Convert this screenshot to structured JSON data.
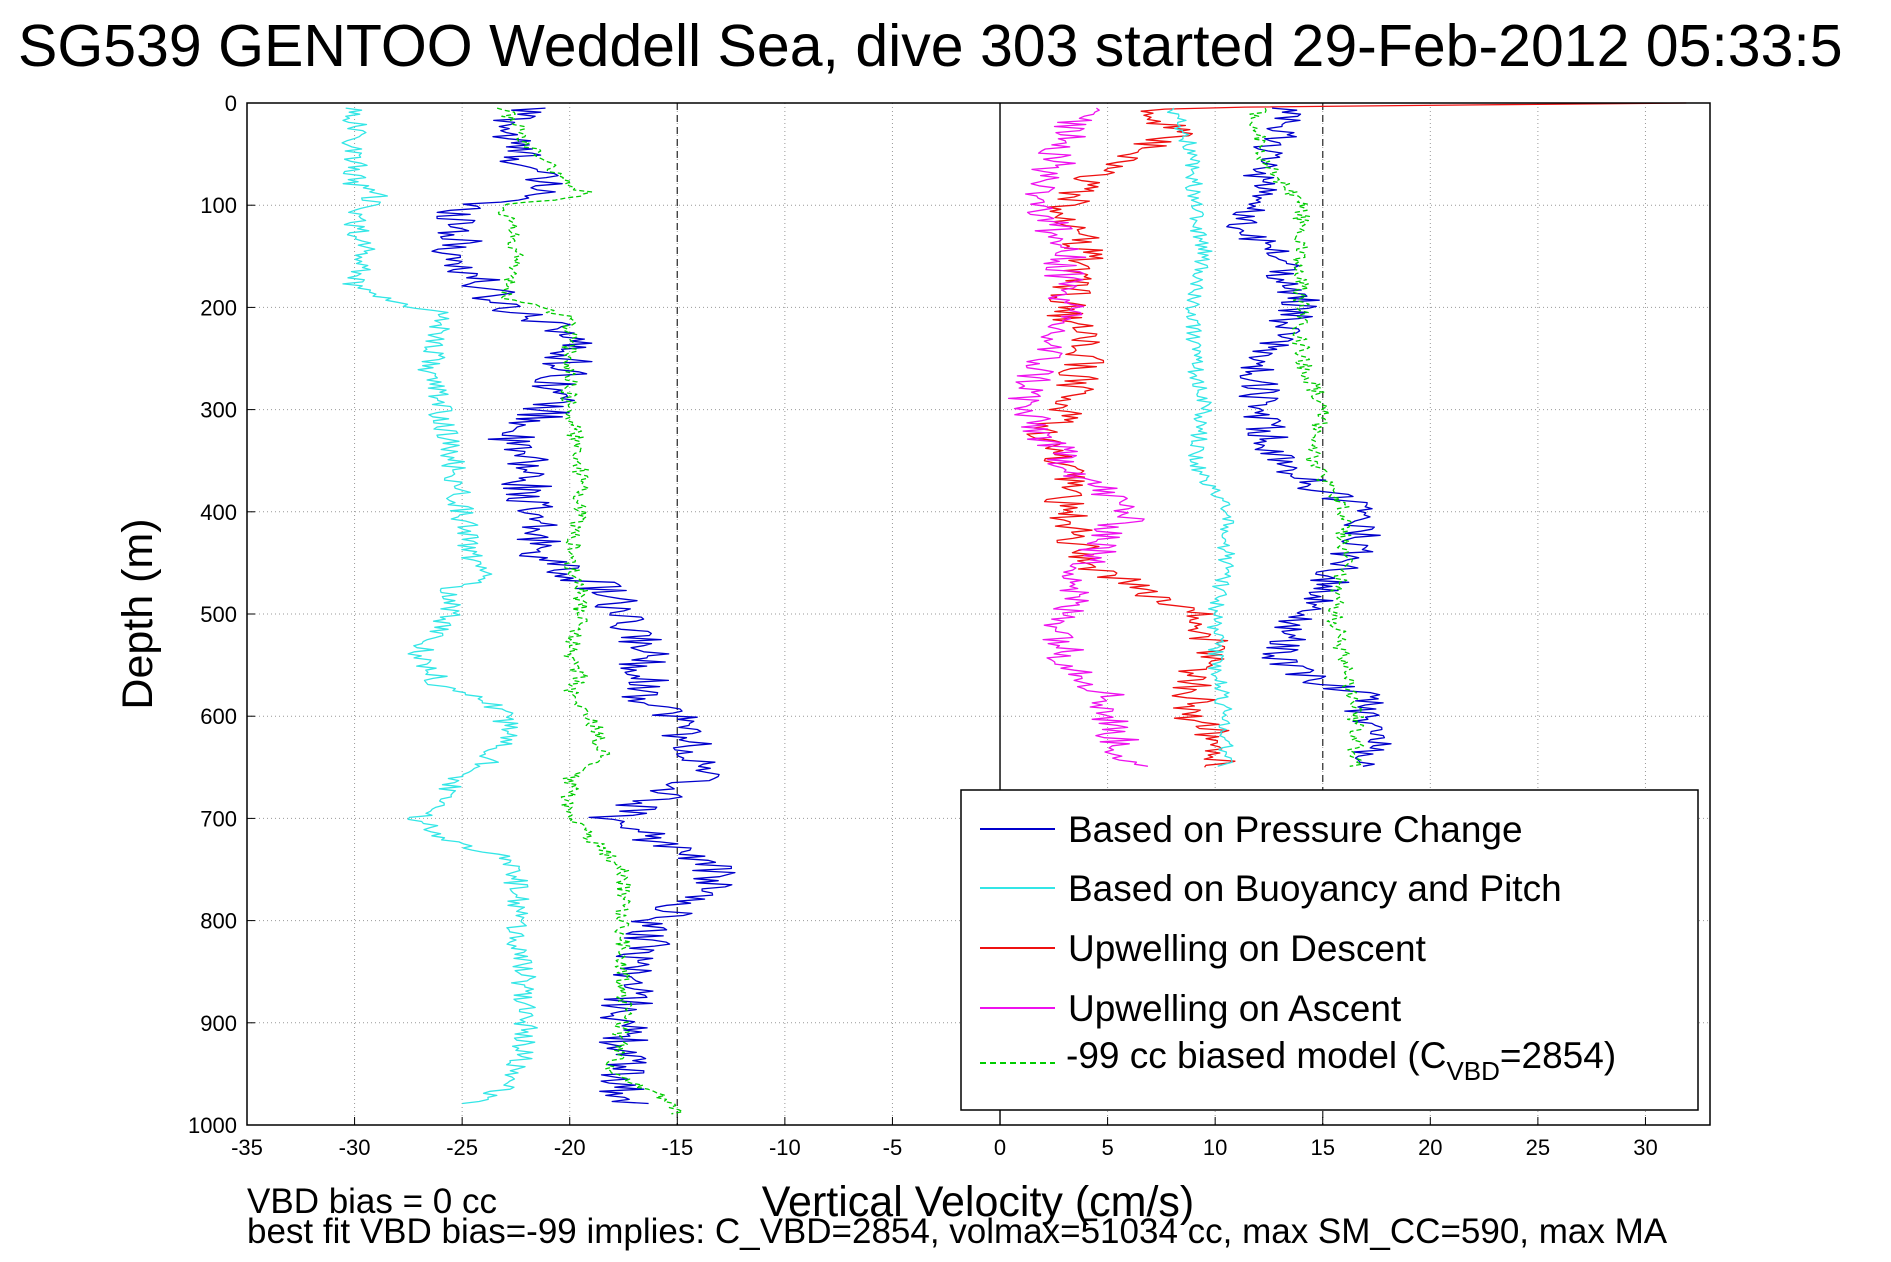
{
  "chart_data": {
    "type": "line",
    "title": "SG539 GENTOO Weddell Sea, dive 303 started 29-Feb-2012 05:33:5",
    "xlabel": "Vertical Velocity (cm/s)",
    "ylabel": "Depth (m)",
    "xlim": [
      -35,
      33
    ],
    "ylim": [
      1000,
      0
    ],
    "y_reversed": true,
    "grid": true,
    "x_ticks": [
      "-35",
      "-30",
      "-25",
      "-20",
      "-15",
      "-10",
      "-5",
      "0",
      "5",
      "10",
      "15",
      "20",
      "25",
      "30"
    ],
    "y_ticks": [
      "0",
      "100",
      "200",
      "300",
      "400",
      "500",
      "600",
      "700",
      "800",
      "900",
      "1000"
    ],
    "reference_lines": [
      -15,
      0,
      15
    ],
    "legend_position": "bottom-right",
    "legend": [
      {
        "label": "Based on Pressure Change",
        "color": "#0000cc",
        "style": "solid"
      },
      {
        "label": "Based on Buoyancy and Pitch",
        "color": "#33e6e6",
        "style": "solid"
      },
      {
        "label": "Upwelling on Descent",
        "color": "#ee1111",
        "style": "solid"
      },
      {
        "label": "Upwelling on Ascent",
        "color": "#ee11ee",
        "style": "solid"
      },
      {
        "label_prefix": "-99 cc biased model (C",
        "label_sub": "VBD",
        "label_suffix": "=2854)",
        "color": "#00cc00",
        "style": "dashed"
      }
    ],
    "series": [
      {
        "name": "Based on Pressure Change",
        "color": "#0000cc",
        "dash": false,
        "y": [
          5,
          30,
          60,
          90,
          100,
          120,
          150,
          180,
          200,
          220,
          250,
          300,
          330,
          350,
          380,
          400,
          450,
          470,
          480,
          500,
          530,
          560,
          580,
          600,
          620,
          660,
          680,
          700,
          720,
          740,
          760,
          800,
          850,
          900,
          950,
          980
        ],
        "x": [
          -22,
          -23,
          -22,
          -21,
          -25,
          -25,
          -25.5,
          -24,
          -23,
          -20,
          -20,
          -21,
          -23,
          -22,
          -22,
          -22,
          -21,
          -19,
          -18,
          -18,
          -16.5,
          -16.5,
          -16.5,
          -15,
          -14.5,
          -14,
          -16,
          -18,
          -16,
          -14,
          -13,
          -16,
          -17,
          -17.5,
          -17.5,
          -17.5
        ],
        "jitter": 1.2
      },
      {
        "name": "Based on Buoyancy and Pitch",
        "color": "#33e6e6",
        "dash": false,
        "y": [
          5,
          15,
          40,
          80,
          90,
          110,
          150,
          180,
          195,
          205,
          220,
          260,
          300,
          350,
          400,
          450,
          465,
          475,
          500,
          540,
          570,
          585,
          595,
          620,
          650,
          665,
          680,
          700,
          720,
          740,
          760,
          800,
          850,
          900,
          950,
          970,
          980
        ],
        "x": [
          -30,
          -30,
          -30,
          -30,
          -29,
          -30,
          -29.5,
          -30,
          -28,
          -26,
          -26,
          -26.5,
          -26,
          -25.5,
          -25,
          -24.5,
          -24,
          -25.5,
          -25.5,
          -27,
          -26,
          -24,
          -23,
          -23,
          -24,
          -25.5,
          -26,
          -27,
          -26,
          -22.5,
          -22.5,
          -22.5,
          -22.2,
          -22,
          -22.5,
          -23.5,
          -24.5
        ],
        "jitter": 0.6
      },
      {
        "name": "Upwelling on Descent",
        "color": "#ee1111",
        "dash": false,
        "y": [
          0,
          5,
          30,
          60,
          100,
          150,
          200,
          250,
          300,
          330,
          360,
          400,
          450,
          480,
          500,
          540,
          560,
          580,
          600,
          620,
          650
        ],
        "x": [
          32,
          7,
          8,
          5,
          3,
          4,
          3,
          4,
          3,
          2,
          3,
          3,
          4,
          7,
          9,
          10,
          9,
          9,
          9,
          10,
          10
        ],
        "jitter": 1.0
      },
      {
        "name": "Upwelling on Ascent",
        "color": "#ee11ee",
        "dash": false,
        "y": [
          5,
          40,
          80,
          100,
          150,
          200,
          250,
          300,
          350,
          400,
          450,
          500,
          540,
          560,
          580,
          600,
          650
        ],
        "x": [
          4,
          3,
          2,
          2,
          3,
          3,
          2,
          1,
          3,
          6,
          4,
          3,
          3,
          4,
          5,
          5,
          6
        ],
        "jitter": 1.0
      },
      {
        "name": "-99 cc biased model",
        "color": "#00cc00",
        "dash": true,
        "y": [
          5,
          40,
          80,
          90,
          100,
          150,
          190,
          210,
          250,
          300,
          350,
          400,
          450,
          470,
          500,
          540,
          560,
          580,
          600,
          640,
          660,
          670,
          700,
          730,
          750,
          800,
          850,
          900,
          950,
          975,
          990
        ],
        "x": [
          -23,
          -22,
          -20,
          -19,
          -23,
          -22.5,
          -23,
          -20,
          -20,
          -20,
          -19.5,
          -19.5,
          -20,
          -19.5,
          -19.5,
          -20,
          -19.5,
          -20,
          -19,
          -18.5,
          -20,
          -20,
          -20,
          -18.5,
          -17.5,
          -17.5,
          -17.5,
          -17.5,
          -18,
          -15.5,
          -15
        ],
        "jitter": 0.4
      },
      {
        "name": "Based on Pressure Change (ascent)",
        "color": "#0000cc",
        "dash": false,
        "y": [
          5,
          30,
          80,
          120,
          150,
          200,
          250,
          300,
          350,
          380,
          400,
          420,
          450,
          480,
          500,
          540,
          560,
          580,
          600,
          620,
          650
        ],
        "x": [
          13,
          13,
          12,
          11,
          13,
          14,
          12,
          12,
          13,
          15,
          17,
          17,
          16,
          15,
          14,
          13,
          14,
          17,
          17,
          17.5,
          17
        ],
        "jitter": 1.0
      },
      {
        "name": "Based on Buoyancy and Pitch (ascent)",
        "color": "#33e6e6",
        "dash": false,
        "y": [
          5,
          50,
          100,
          150,
          200,
          250,
          300,
          350,
          400,
          450,
          500,
          550,
          600,
          650
        ],
        "x": [
          8,
          9,
          9,
          9.5,
          9,
          9,
          9.5,
          9,
          10.5,
          10.5,
          10,
          10,
          10.5,
          10.5
        ],
        "jitter": 0.4
      },
      {
        "name": "-99 cc biased model (ascent)",
        "color": "#00cc00",
        "dash": true,
        "y": [
          5,
          50,
          100,
          150,
          200,
          250,
          300,
          350,
          400,
          450,
          500,
          550,
          600,
          650
        ],
        "x": [
          12,
          12,
          14,
          14,
          14,
          14,
          15,
          14.5,
          16,
          16,
          15.5,
          16,
          16.5,
          16.5
        ],
        "jitter": 0.4
      }
    ]
  },
  "notes": {
    "line1": "VBD bias = 0 cc",
    "line2": "best fit VBD bias=-99 implies: C_VBD=2854, volmax=51034 cc, max SM_CC=590, max MA"
  }
}
